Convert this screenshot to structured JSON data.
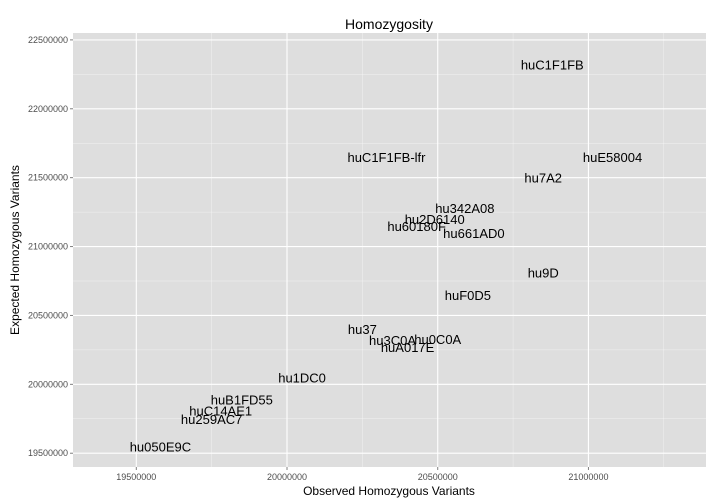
{
  "chart_data": {
    "type": "scatter",
    "title": "Homozygosity",
    "xlabel": "Observed Homozygous Variants",
    "ylabel": "Expected Homozygous Variants",
    "xlim": [
      19290000,
      21390000
    ],
    "ylim": [
      19400000,
      22550000
    ],
    "xticks": [
      19500000,
      20000000,
      20500000,
      21000000
    ],
    "yticks": [
      19500000,
      20000000,
      20500000,
      21000000,
      21500000,
      22000000,
      22500000
    ],
    "grid": true,
    "background": "#dedede",
    "grid_color": "#ffffff",
    "points": [
      {
        "label": "huC1F1FB",
        "x": 20880000,
        "y": 22320000
      },
      {
        "label": "huC1F1FB-lfr",
        "x": 20330000,
        "y": 21650000
      },
      {
        "label": "huE58004",
        "x": 21080000,
        "y": 21650000
      },
      {
        "label": "hu050E9C",
        "x": 19580000,
        "y": 19550000
      },
      {
        "label": "huB1FD55",
        "x": 19850000,
        "y": 19890000
      },
      {
        "label": "huC14AE1",
        "x": 19780000,
        "y": 19810000
      },
      {
        "label": "hu259AC7",
        "x": 19750000,
        "y": 19750000
      },
      {
        "label": "hu2D6140",
        "x": 20490000,
        "y": 21200000
      },
      {
        "label": "hu60180F",
        "x": 20430000,
        "y": 21150000
      },
      {
        "label": "hu661AD0",
        "x": 20620000,
        "y": 21100000
      },
      {
        "label": "hu342A08",
        "x": 20590000,
        "y": 21280000
      },
      {
        "label": "hu37",
        "x": 20250000,
        "y": 20400000
      },
      {
        "label": "hu7A2",
        "x": 20850000,
        "y": 21500000
      },
      {
        "label": "hu9D",
        "x": 20850000,
        "y": 20810000
      },
      {
        "label": "hu3C0A",
        "x": 20350000,
        "y": 20320000
      },
      {
        "label": "hu0C0A",
        "x": 20500000,
        "y": 20330000
      },
      {
        "label": "huA017E",
        "x": 20400000,
        "y": 20270000
      },
      {
        "label": "hu1DC0",
        "x": 20050000,
        "y": 20050000
      },
      {
        "label": "huF0D5",
        "x": 20600000,
        "y": 20650000
      }
    ]
  }
}
